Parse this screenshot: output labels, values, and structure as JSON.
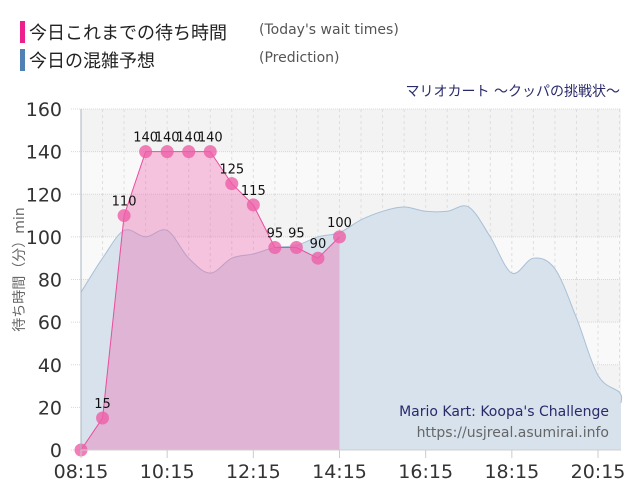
{
  "legend": {
    "today": {
      "label_jp": "今日これまでの待ち時間",
      "label_en": "(Today's wait times)",
      "color": "#ee1f8c"
    },
    "prediction": {
      "label_jp": "今日の混雑予想",
      "label_en": "(Prediction)",
      "color": "#4f81b5"
    }
  },
  "subtitle": "マリオカート ～クッパの挑戦状～",
  "watermark": {
    "title": "Mario Kart: Koopa's Challenge",
    "url": "https://usjreal.asumirai.info"
  },
  "chart_data": {
    "type": "area",
    "title": "マリオカート ～クッパの挑戦状～",
    "xlabel": "",
    "ylabel": "待ち時間（分）min",
    "ylim": [
      0,
      160
    ],
    "yticks": [
      0,
      20,
      40,
      60,
      80,
      100,
      120,
      140,
      160
    ],
    "xticks": [
      "08:15",
      "10:15",
      "12:15",
      "14:15",
      "16:15",
      "18:15",
      "20:15"
    ],
    "grid": true,
    "legend_position": "top-left",
    "series": [
      {
        "name": "今日これまでの待ち時間 (Today's wait times)",
        "type": "area+markers",
        "color": "#ee5fa8",
        "x": [
          "08:15",
          "08:45",
          "09:15",
          "09:45",
          "10:15",
          "10:45",
          "11:15",
          "11:45",
          "12:15",
          "12:45",
          "13:15",
          "13:45",
          "14:15"
        ],
        "values": [
          0,
          15,
          110,
          140,
          140,
          140,
          140,
          125,
          115,
          95,
          95,
          90,
          100
        ],
        "data_labels": true
      },
      {
        "name": "今日の混雑予想 (Prediction)",
        "type": "area-smooth",
        "color": "#a9c0d6",
        "x": [
          "08:15",
          "08:45",
          "09:15",
          "09:45",
          "10:15",
          "10:45",
          "11:15",
          "11:45",
          "12:15",
          "12:45",
          "13:15",
          "13:45",
          "14:15",
          "14:45",
          "15:15",
          "15:45",
          "16:15",
          "16:45",
          "17:15",
          "17:45",
          "18:15",
          "18:45",
          "19:15",
          "19:45",
          "20:15",
          "20:45",
          "21:00"
        ],
        "values": [
          74,
          90,
          103,
          100,
          103,
          90,
          83,
          90,
          92,
          95,
          96,
          100,
          102,
          108,
          112,
          114,
          112,
          112,
          114,
          100,
          83,
          90,
          85,
          62,
          35,
          27,
          22
        ]
      }
    ]
  }
}
